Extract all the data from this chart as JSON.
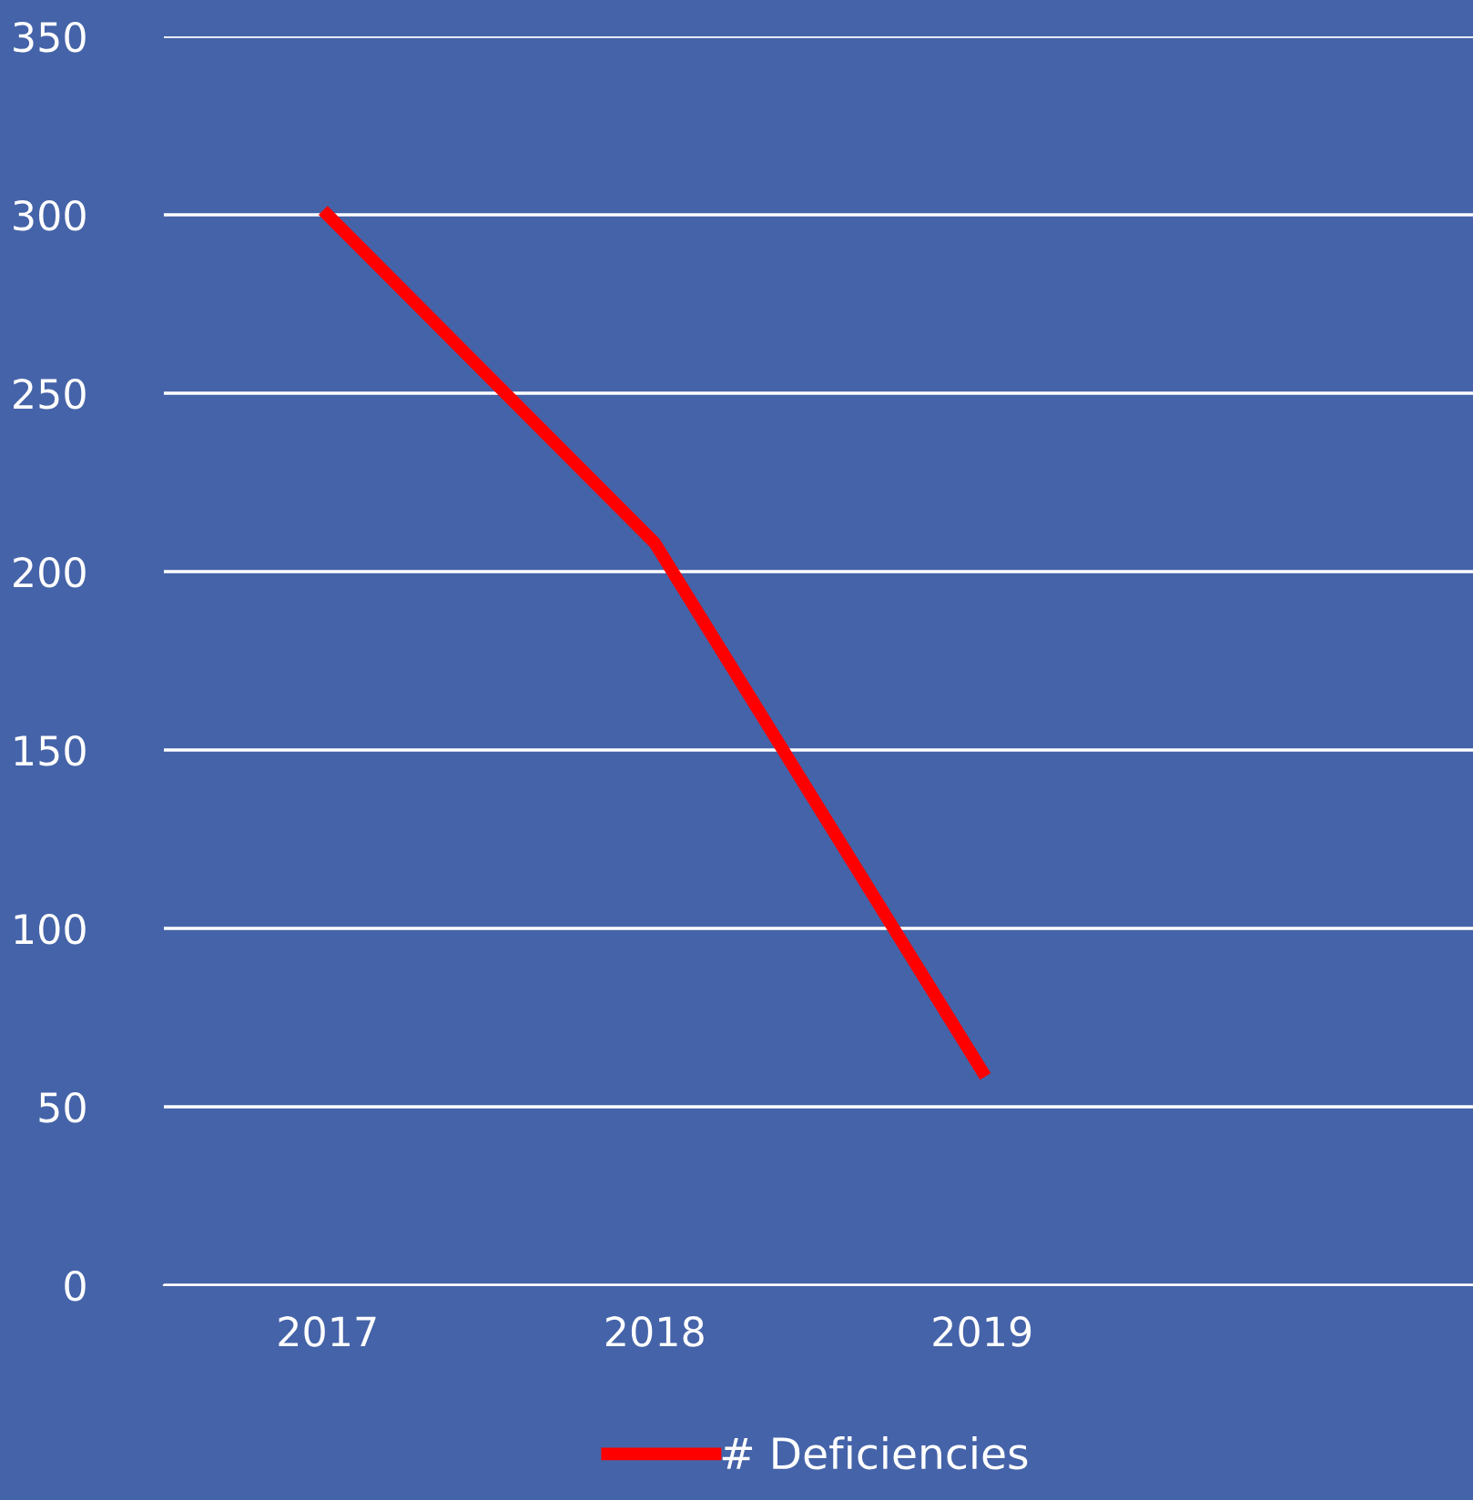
{
  "chart_data": {
    "type": "line",
    "categories": [
      "2017",
      "2018",
      "2019",
      null
    ],
    "series": [
      {
        "name": "# Deficiencies",
        "color": "#ff0000",
        "values": [
          300,
          208,
          60,
          null
        ]
      }
    ],
    "ylim": [
      0,
      350
    ],
    "yticks": [
      0,
      50,
      100,
      150,
      200,
      250,
      300,
      350
    ],
    "grid": "y",
    "legend": "bottom",
    "marker": "none",
    "line_style": "solid"
  }
}
